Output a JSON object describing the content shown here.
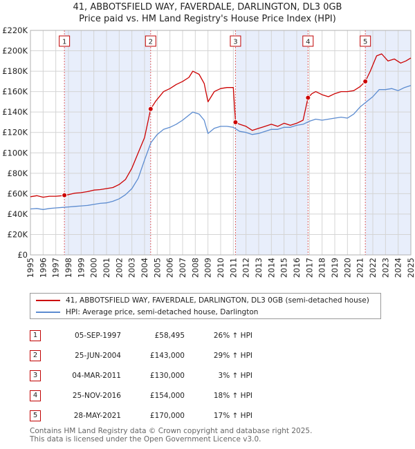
{
  "header": {
    "title_line1": "41, ABBOTSFIELD WAY, FAVERDALE, DARLINGTON, DL3 0GB",
    "title_line2": "Price paid vs. HM Land Registry's House Price Index (HPI)"
  },
  "colors": {
    "price": "#cc0000",
    "hpi": "#5b8bd0",
    "shade": "#e8eefb",
    "marker_box": "#c00000"
  },
  "chart_data": {
    "type": "line",
    "title": "41, ABBOTSFIELD WAY, FAVERDALE, DARLINGTON, DL3 0GB — Price paid vs. HM Land Registry's House Price Index (HPI)",
    "xlabel": "",
    "ylabel": "",
    "xlim": [
      1995,
      2025
    ],
    "ylim": [
      0,
      220000
    ],
    "y_ticks": [
      0,
      20000,
      40000,
      60000,
      80000,
      100000,
      120000,
      140000,
      160000,
      180000,
      200000,
      220000
    ],
    "y_tick_labels": [
      "£0",
      "£20K",
      "£40K",
      "£60K",
      "£80K",
      "£100K",
      "£120K",
      "£140K",
      "£160K",
      "£180K",
      "£200K",
      "£220K"
    ],
    "x_ticks": [
      1995,
      1996,
      1997,
      1998,
      1999,
      2000,
      2001,
      2002,
      2003,
      2004,
      2005,
      2006,
      2007,
      2008,
      2009,
      2010,
      2011,
      2012,
      2013,
      2014,
      2015,
      2016,
      2017,
      2018,
      2019,
      2020,
      2021,
      2022,
      2023,
      2024,
      2025
    ],
    "x_tick_labels": [
      "1995",
      "1996",
      "1997",
      "1998",
      "1999",
      "2000",
      "2001",
      "2002",
      "2003",
      "2004",
      "2005",
      "2006",
      "2007",
      "2008",
      "2009",
      "2010",
      "2011",
      "2012",
      "2013",
      "2014",
      "2015",
      "2016",
      "2017",
      "2018",
      "2019",
      "2020",
      "2021",
      "2022",
      "2023",
      "2024",
      "2025"
    ],
    "grid": true,
    "series": [
      {
        "name": "41, ABBOTSFIELD WAY, FAVERDALE, DARLINGTON, DL3 0GB (semi-detached house)",
        "x": [
          1995.0,
          1995.5,
          1996.0,
          1996.5,
          1997.0,
          1997.5,
          1997.68,
          1998.0,
          1998.5,
          1999.0,
          1999.5,
          2000.0,
          2000.5,
          2001.0,
          2001.5,
          2002.0,
          2002.5,
          2003.0,
          2003.5,
          2004.0,
          2004.48,
          2004.9,
          2005.5,
          2006.0,
          2006.5,
          2007.0,
          2007.5,
          2007.8,
          2008.3,
          2008.7,
          2009.0,
          2009.5,
          2010.0,
          2010.5,
          2011.0,
          2011.17,
          2011.5,
          2012.0,
          2012.5,
          2013.0,
          2013.5,
          2014.0,
          2014.5,
          2015.0,
          2015.5,
          2016.0,
          2016.5,
          2016.89,
          2017.2,
          2017.5,
          2018.0,
          2018.5,
          2019.0,
          2019.5,
          2020.0,
          2020.5,
          2021.0,
          2021.41,
          2021.8,
          2022.3,
          2022.7,
          2023.2,
          2023.7,
          2024.2,
          2024.6,
          2025.0
        ],
        "values": [
          57000,
          58000,
          56500,
          57500,
          57500,
          58000,
          58495,
          59000,
          60500,
          61000,
          62000,
          63500,
          64000,
          65000,
          66000,
          69000,
          74000,
          85000,
          100000,
          115000,
          143000,
          151000,
          160000,
          163000,
          167000,
          170000,
          174000,
          180000,
          177000,
          168000,
          150000,
          160000,
          163000,
          164000,
          164000,
          130000,
          128000,
          126000,
          122000,
          124000,
          126000,
          128000,
          126000,
          129000,
          127000,
          129000,
          132000,
          154000,
          158000,
          160000,
          157000,
          155000,
          158000,
          160000,
          160000,
          161000,
          165000,
          170000,
          180000,
          195000,
          197000,
          190000,
          192000,
          188000,
          190000,
          193000
        ]
      },
      {
        "name": "HPI: Average price, semi-detached house, Darlington",
        "x": [
          1995.0,
          1995.5,
          1996.0,
          1996.5,
          1997.0,
          1997.5,
          1998.0,
          1998.5,
          1999.0,
          1999.5,
          2000.0,
          2000.5,
          2001.0,
          2001.5,
          2002.0,
          2002.5,
          2003.0,
          2003.5,
          2004.0,
          2004.5,
          2005.0,
          2005.5,
          2006.0,
          2006.5,
          2007.0,
          2007.5,
          2007.8,
          2008.3,
          2008.7,
          2009.0,
          2009.5,
          2010.0,
          2010.5,
          2011.0,
          2011.5,
          2012.0,
          2012.5,
          2013.0,
          2013.5,
          2014.0,
          2014.5,
          2015.0,
          2015.5,
          2016.0,
          2016.5,
          2017.0,
          2017.5,
          2018.0,
          2018.5,
          2019.0,
          2019.5,
          2020.0,
          2020.5,
          2021.0,
          2021.5,
          2022.0,
          2022.5,
          2023.0,
          2023.5,
          2024.0,
          2024.5,
          2025.0
        ],
        "values": [
          45000,
          45500,
          44500,
          45500,
          46000,
          46500,
          47000,
          47500,
          48000,
          48500,
          49500,
          50500,
          51000,
          52500,
          55000,
          59000,
          65000,
          75000,
          93000,
          110000,
          118000,
          123000,
          125000,
          128000,
          132000,
          137000,
          140000,
          138000,
          132000,
          119000,
          124000,
          126000,
          126000,
          125000,
          121000,
          120000,
          118000,
          119000,
          121000,
          123000,
          123000,
          125000,
          125000,
          127000,
          128000,
          131000,
          133000,
          132000,
          133000,
          134000,
          135000,
          134000,
          138000,
          145000,
          150000,
          155000,
          162000,
          162000,
          163000,
          161000,
          164000,
          166000
        ]
      }
    ],
    "sales": [
      {
        "n": "1",
        "x": 1997.68,
        "value": 58495
      },
      {
        "n": "2",
        "x": 2004.48,
        "value": 143000
      },
      {
        "n": "3",
        "x": 2011.17,
        "value": 130000
      },
      {
        "n": "4",
        "x": 2016.89,
        "value": 154000
      },
      {
        "n": "5",
        "x": 2021.41,
        "value": 170000
      }
    ],
    "shaded_spans": [
      [
        1997.68,
        2004.48
      ],
      [
        2011.17,
        2016.89
      ],
      [
        2021.41,
        2025.0
      ]
    ]
  },
  "legend": {
    "price_label": "41, ABBOTSFIELD WAY, FAVERDALE, DARLINGTON, DL3 0GB (semi-detached house)",
    "hpi_label": "HPI: Average price, semi-detached house, Darlington"
  },
  "transactions": [
    {
      "num": "1",
      "date": "05-SEP-1997",
      "price": "£58,495",
      "hpi": "26% ↑ HPI"
    },
    {
      "num": "2",
      "date": "25-JUN-2004",
      "price": "£143,000",
      "hpi": "29% ↑ HPI"
    },
    {
      "num": "3",
      "date": "04-MAR-2011",
      "price": "£130,000",
      "hpi": "3% ↑ HPI"
    },
    {
      "num": "4",
      "date": "25-NOV-2016",
      "price": "£154,000",
      "hpi": "18% ↑ HPI"
    },
    {
      "num": "5",
      "date": "28-MAY-2021",
      "price": "£170,000",
      "hpi": "17% ↑ HPI"
    }
  ],
  "footer": {
    "line1": "Contains HM Land Registry data © Crown copyright and database right 2025.",
    "line2": "This data is licensed under the Open Government Licence v3.0."
  }
}
